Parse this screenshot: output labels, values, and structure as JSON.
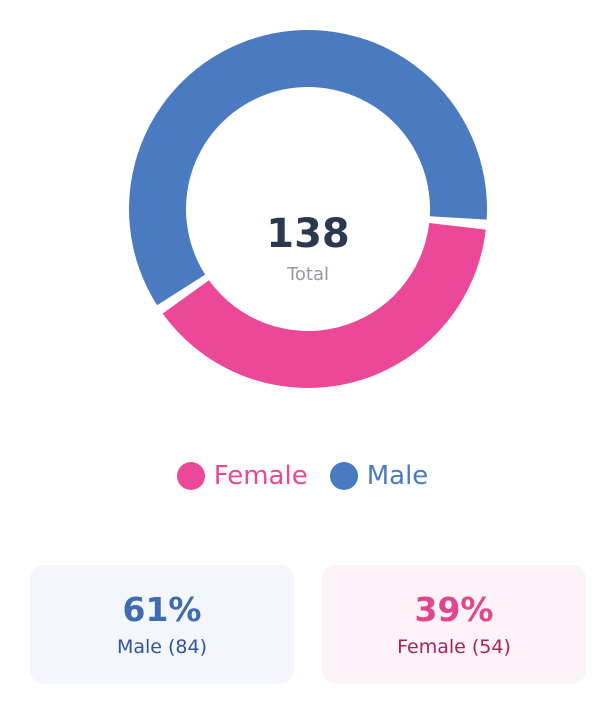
{
  "chart_data": {
    "type": "pie",
    "style": "donut",
    "categories": [
      "Female",
      "Male"
    ],
    "values": [
      54,
      84
    ],
    "colors": [
      "#ec4899",
      "#4a7bc1"
    ],
    "legend_position": "bottom",
    "center": {
      "value": "138",
      "label": "Total"
    }
  },
  "legend": [
    {
      "label": "Female",
      "color": "#ec4899"
    },
    {
      "label": "Male",
      "color": "#4a7bc1"
    }
  ],
  "stats": {
    "male": {
      "percent": "61%",
      "label": "Male (84)",
      "color": "#3f6bb0",
      "label_color": "#2f559a"
    },
    "female": {
      "percent": "39%",
      "label": "Female (54)",
      "color": "#e0458e",
      "label_color": "#a32360"
    }
  },
  "theme": {
    "center_value_color": "#2a3850",
    "center_label_color": "#8e9aab"
  }
}
